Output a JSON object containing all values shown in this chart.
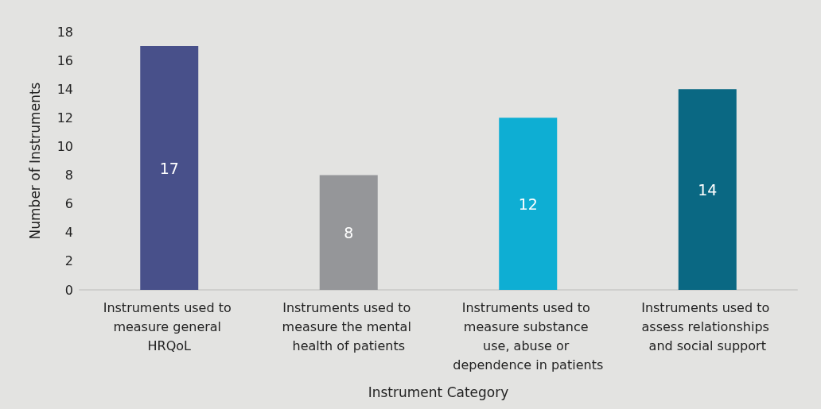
{
  "chart_data": {
    "type": "bar",
    "xlabel": "Instrument Category",
    "ylabel": "Number of Instruments",
    "categories": [
      "Instruments used to measure general HRQoL",
      "Instruments used to measure the mental health of patients",
      "Instruments used to measure substance use, abuse or dependence in patients",
      "Instruments used to assess relationships and social support"
    ],
    "values": [
      17,
      8,
      12,
      14
    ],
    "colors": [
      "#48508a",
      "#959699",
      "#0eaed3",
      "#0a6883"
    ],
    "ylim": [
      0,
      18
    ],
    "yticks": [
      0,
      2,
      4,
      6,
      8,
      10,
      12,
      14,
      16,
      18
    ],
    "grid": false,
    "data_labels": true
  }
}
